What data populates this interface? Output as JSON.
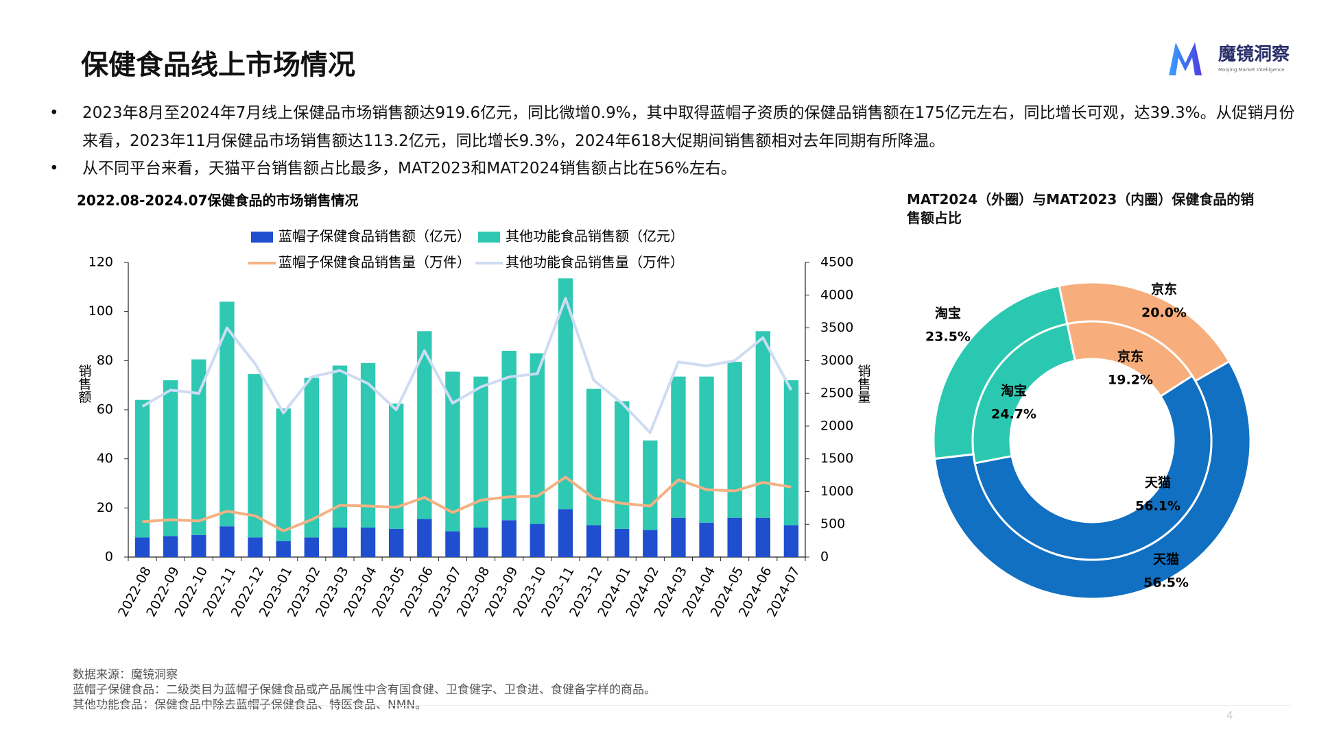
{
  "header": {
    "title": "保健食品线上市场情况"
  },
  "logo": {
    "name": "魔镜洞察",
    "tagline": "Moojing Market Intelligence"
  },
  "bullets": [
    "2023年8月至2024年7月线上保健品市场销售额达919.6亿元，同比微增0.9%，其中取得蓝帽子资质的保健品销售额在175亿元左右，同比增长可观，达39.3%。从促销月份来看，2023年11月保健品市场销售额达113.2亿元，同比增长9.3%，2024年618大促期间销售额相对去年同期有所降温。",
    "从不同平台来看，天猫平台销售额占比最多，MAT2023和MAT2024销售额占比在56%左右。"
  ],
  "chart_data": [
    {
      "type": "bar",
      "stacked": true,
      "title": "2022.08-2024.07保健食品的市场销售情况",
      "y_label": "销售额",
      "y2_label": "销售量",
      "categories": [
        "2022-08",
        "2022-09",
        "2022-10",
        "2022-11",
        "2022-12",
        "2023-01",
        "2023-02",
        "2023-03",
        "2023-04",
        "2023-05",
        "2023-06",
        "2023-07",
        "2023-08",
        "2023-09",
        "2023-10",
        "2023-11",
        "2023-12",
        "2024-01",
        "2024-02",
        "2024-03",
        "2024-04",
        "2024-05",
        "2024-06",
        "2024-07"
      ],
      "series": [
        {
          "name": "蓝帽子保健食品销售额（亿元）",
          "type": "bar",
          "color": "#1f4fcf",
          "values": [
            8,
            8.5,
            9,
            12.5,
            8,
            6.5,
            8,
            12,
            12,
            11.5,
            15.5,
            10.5,
            12,
            15,
            13.5,
            19.5,
            13,
            11.5,
            11,
            16,
            14,
            16,
            16,
            13
          ]
        },
        {
          "name": "其他功能食品销售额（亿元）",
          "type": "bar",
          "color": "#2ec8b3",
          "values": [
            56,
            63.5,
            71.5,
            91.5,
            66.5,
            54,
            65,
            66,
            67,
            51,
            76.5,
            65,
            61.5,
            69,
            69.5,
            94,
            55.5,
            52,
            36.5,
            57.5,
            59.5,
            63.5,
            76,
            59
          ]
        },
        {
          "name": "蓝帽子保健食品销售量（万件）",
          "type": "line",
          "axis": "y2",
          "color": "#f4b183",
          "values": [
            540,
            570,
            550,
            700,
            630,
            400,
            570,
            790,
            780,
            760,
            910,
            680,
            870,
            920,
            930,
            1220,
            900,
            820,
            780,
            1180,
            1030,
            1010,
            1140,
            1070
          ]
        },
        {
          "name": "其他功能食品销售量（万件）",
          "type": "line",
          "axis": "y2",
          "color": "#cddcf2",
          "values": [
            2300,
            2550,
            2500,
            3500,
            2950,
            2200,
            2750,
            2850,
            2650,
            2250,
            3150,
            2350,
            2600,
            2750,
            2800,
            3950,
            2700,
            2350,
            1900,
            2980,
            2920,
            3000,
            3350,
            2550
          ]
        }
      ],
      "ylim": [
        0,
        120
      ],
      "yticks": [
        0,
        20,
        40,
        60,
        80,
        100,
        120
      ],
      "y2lim": [
        0,
        4500
      ],
      "y2ticks": [
        0,
        500,
        1000,
        1500,
        2000,
        2500,
        3000,
        3500,
        4000,
        4500
      ],
      "legend": "top"
    },
    {
      "type": "donut",
      "title": "MAT2024（外圈）与MAT2023（内圈）保健食品的销售额占比",
      "categories": [
        "京东",
        "天猫",
        "淘宝"
      ],
      "colors": [
        "#f7ae7c",
        "#1170c2",
        "#2bc8b1"
      ],
      "rings": [
        {
          "values": [
            20.0,
            56.5,
            23.5
          ],
          "value_labels": [
            "20.0%",
            "56.5%",
            "23.5%"
          ]
        },
        {
          "values": [
            19.2,
            56.1,
            24.7
          ],
          "value_labels": [
            "19.2%",
            "56.1%",
            "24.7%"
          ]
        }
      ]
    }
  ],
  "notes": [
    "数据来源：魔镜洞察",
    "蓝帽子保健食品：二级类目为蓝帽子保健食品或产品属性中含有国食健、卫食健字、卫食进、食健备字样的商品。",
    "其他功能食品：保健食品中除去蓝帽子保健食品、特医食品、NMN。"
  ],
  "page_number": "4"
}
